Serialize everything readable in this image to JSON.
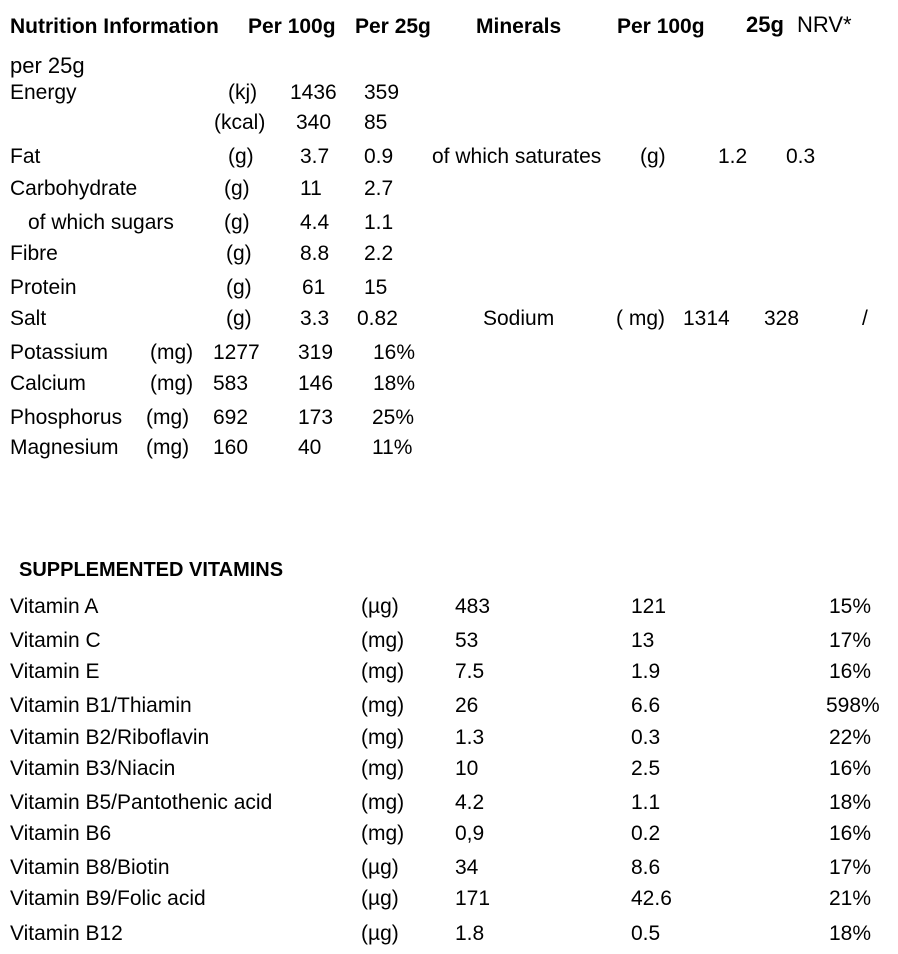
{
  "header": {
    "title": "Nutrition Information",
    "per100": "Per 100g",
    "per25": "Per 25g",
    "minerals": "Minerals",
    "minerals_per100": "Per 100g",
    "col_25g": "25g",
    "col_nrv": "NRV*",
    "per25_line2": "per 25g"
  },
  "macros": [
    {
      "name": "Energy",
      "unit": "(kj)",
      "v100": "1436",
      "v25": "359"
    },
    {
      "name": "",
      "unit": "(kcal)",
      "v100": "340",
      "v25": "85"
    },
    {
      "name": "Fat",
      "unit": "(g)",
      "v100": "3.7",
      "v25": "0.9"
    },
    {
      "name": "Carbohydrate",
      "unit": "(g)",
      "v100": "11",
      "v25": "2.7"
    },
    {
      "name": "of which sugars",
      "unit": "(g)",
      "v100": "4.4",
      "v25": "1.1"
    },
    {
      "name": "Fibre",
      "unit": "(g)",
      "v100": "8.8",
      "v25": "2.2"
    },
    {
      "name": "Protein",
      "unit": "(g)",
      "v100": "61",
      "v25": "15"
    },
    {
      "name": "Salt",
      "unit": "(g)",
      "v100": "3.3",
      "v25": "0.82"
    }
  ],
  "side": {
    "saturates": {
      "name": "of which saturates",
      "unit": "(g)",
      "v100": "1.2",
      "v25": "0.3"
    },
    "sodium": {
      "name": "Sodium",
      "unit": "( mg)",
      "v100": "1314",
      "v25": "328",
      "nrv": "/"
    }
  },
  "minerals": [
    {
      "name": "Potassium",
      "unit": "(mg)",
      "v100": "1277",
      "v25": "319",
      "nrv": "16%"
    },
    {
      "name": "Calcium",
      "unit": "(mg)",
      "v100": "583",
      "v25": "146",
      "nrv": "18%"
    },
    {
      "name": "Phosphorus",
      "unit": "(mg)",
      "v100": "692",
      "v25": "173",
      "nrv": "25%"
    },
    {
      "name": "Magnesium",
      "unit": "(mg)",
      "v100": "160",
      "v25": "40",
      "nrv": "11%"
    }
  ],
  "vitamins_title": "SUPPLEMENTED VITAMINS",
  "vitamins": [
    {
      "name": "Vitamin A",
      "unit": "(µg)",
      "v100": "483",
      "v25": "121",
      "nrv": "15%"
    },
    {
      "name": "Vitamin C",
      "unit": "(mg)",
      "v100": "53",
      "v25": "13",
      "nrv": "17%"
    },
    {
      "name": "Vitamin E",
      "unit": "(mg)",
      "v100": "7.5",
      "v25": "1.9",
      "nrv": "16%"
    },
    {
      "name": "Vitamin B1/Thiamin",
      "unit": "(mg)",
      "v100": "26",
      "v25": "6.6",
      "nrv": "598%"
    },
    {
      "name": "Vitamin B2/Riboflavin",
      "unit": "(mg)",
      "v100": "1.3",
      "v25": "0.3",
      "nrv": "22%"
    },
    {
      "name": "Vitamin B3/Niacin",
      "unit": "(mg)",
      "v100": "10",
      "v25": "2.5",
      "nrv": "16%"
    },
    {
      "name": "Vitamin B5/Pantothenic acid",
      "unit": "(mg)",
      "v100": "4.2",
      "v25": "1.1",
      "nrv": "18%"
    },
    {
      "name": "Vitamin B6",
      "unit": "(mg)",
      "v100": "0,9",
      "v25": "0.2",
      "nrv": "16%"
    },
    {
      "name": "Vitamin B8/Biotin",
      "unit": "(µg)",
      "v100": "34",
      "v25": "8.6",
      "nrv": "17%"
    },
    {
      "name": "Vitamin B9/Folic acid",
      "unit": "(µg)",
      "v100": "171",
      "v25": "42.6",
      "nrv": "21%"
    },
    {
      "name": "Vitamin B12",
      "unit": "(µg)",
      "v100": "1.8",
      "v25": "0.5",
      "nrv": "18%"
    }
  ]
}
